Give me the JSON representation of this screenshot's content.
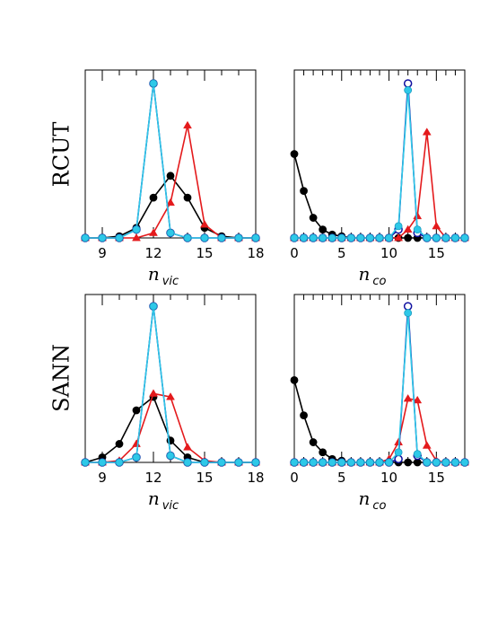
{
  "colors": {
    "black": "#000000",
    "red": "#e41a1c",
    "blue": "#1010a0",
    "cyan": "#2ec8e8"
  },
  "row_labels": [
    "RCUT",
    "SANN"
  ],
  "chart_data": [
    {
      "type": "line",
      "row": "RCUT",
      "xlabel": "n",
      "xlabel_sub": "vic",
      "xlim": [
        8,
        18
      ],
      "ylim": [
        0,
        1.0
      ],
      "xticks": [
        9,
        12,
        15,
        18
      ],
      "series": [
        {
          "color": "black",
          "marker": "circle",
          "x": [
            8,
            9,
            10,
            11,
            12,
            13,
            14,
            15,
            16,
            17,
            18
          ],
          "y": [
            0,
            0,
            0.01,
            0.06,
            0.24,
            0.37,
            0.24,
            0.06,
            0.01,
            0,
            0
          ]
        },
        {
          "color": "red",
          "marker": "triangle",
          "x": [
            8,
            9,
            10,
            11,
            12,
            13,
            14,
            15,
            16,
            17,
            18
          ],
          "y": [
            0,
            0,
            0,
            0,
            0.03,
            0.21,
            0.67,
            0.08,
            0,
            0,
            0
          ]
        },
        {
          "color": "blue",
          "marker": "open-circle",
          "x": [
            8,
            9,
            10,
            11,
            12,
            13,
            14,
            15,
            16,
            17,
            18
          ],
          "y": [
            0,
            0,
            0,
            0.05,
            0.92,
            0.03,
            0,
            0,
            0,
            0,
            0
          ]
        },
        {
          "color": "cyan",
          "marker": "circle",
          "x": [
            8,
            9,
            10,
            11,
            12,
            13,
            14,
            15,
            16,
            17,
            18
          ],
          "y": [
            0,
            0,
            0,
            0.05,
            0.92,
            0.03,
            0,
            0,
            0,
            0,
            0
          ]
        }
      ]
    },
    {
      "type": "line",
      "row": "RCUT",
      "xlabel": "n",
      "xlabel_sub": "co",
      "xlim": [
        0,
        18
      ],
      "ylim": [
        0,
        1.0
      ],
      "xticks": [
        0,
        5,
        10,
        15
      ],
      "series": [
        {
          "color": "black",
          "marker": "circle",
          "x": [
            0,
            1,
            2,
            3,
            4,
            5,
            6,
            7,
            8,
            9,
            10,
            11,
            12,
            13,
            14,
            15,
            16,
            17,
            18
          ],
          "y": [
            0.5,
            0.28,
            0.12,
            0.05,
            0.02,
            0.01,
            0,
            0,
            0,
            0,
            0,
            0,
            0,
            0,
            0,
            0,
            0,
            0,
            0
          ]
        },
        {
          "color": "red",
          "marker": "triangle",
          "x": [
            0,
            1,
            2,
            3,
            4,
            5,
            6,
            7,
            8,
            9,
            10,
            11,
            12,
            13,
            14,
            15,
            16,
            17,
            18
          ],
          "y": [
            0,
            0,
            0,
            0,
            0,
            0,
            0,
            0,
            0,
            0,
            0,
            0,
            0.05,
            0.13,
            0.63,
            0.07,
            0,
            0,
            0
          ]
        },
        {
          "color": "blue",
          "marker": "open-circle",
          "x": [
            0,
            1,
            2,
            3,
            4,
            5,
            6,
            7,
            8,
            9,
            10,
            11,
            12,
            13,
            14,
            15,
            16,
            17,
            18
          ],
          "y": [
            0,
            0,
            0,
            0,
            0,
            0,
            0,
            0,
            0,
            0,
            0,
            0.05,
            0.92,
            0.03,
            0,
            0,
            0,
            0,
            0
          ]
        },
        {
          "color": "cyan",
          "marker": "circle",
          "x": [
            0,
            1,
            2,
            3,
            4,
            5,
            6,
            7,
            8,
            9,
            10,
            11,
            12,
            13,
            14,
            15,
            16,
            17,
            18
          ],
          "y": [
            0,
            0,
            0,
            0,
            0,
            0,
            0,
            0,
            0,
            0,
            0,
            0.07,
            0.88,
            0.05,
            0,
            0,
            0,
            0,
            0
          ]
        }
      ]
    },
    {
      "type": "line",
      "row": "SANN",
      "xlabel": "n",
      "xlabel_sub": "vic",
      "xlim": [
        8,
        18
      ],
      "ylim": [
        0,
        1.0
      ],
      "xticks": [
        9,
        12,
        15,
        18
      ],
      "series": [
        {
          "color": "black",
          "marker": "circle",
          "x": [
            8,
            9,
            10,
            11,
            12,
            13,
            14,
            15,
            16,
            17,
            18
          ],
          "y": [
            0,
            0.03,
            0.11,
            0.31,
            0.39,
            0.13,
            0.03,
            0,
            0,
            0,
            0
          ]
        },
        {
          "color": "red",
          "marker": "triangle",
          "x": [
            8,
            9,
            10,
            11,
            12,
            13,
            14,
            15,
            16,
            17,
            18
          ],
          "y": [
            0,
            0,
            0.01,
            0.11,
            0.41,
            0.39,
            0.09,
            0.01,
            0,
            0,
            0
          ]
        },
        {
          "color": "blue",
          "marker": "open-circle",
          "x": [
            8,
            9,
            10,
            11,
            12,
            13,
            14,
            15,
            16,
            17,
            18
          ],
          "y": [
            0,
            0,
            0,
            0.03,
            0.93,
            0.04,
            0,
            0,
            0,
            0,
            0
          ]
        },
        {
          "color": "cyan",
          "marker": "circle",
          "x": [
            8,
            9,
            10,
            11,
            12,
            13,
            14,
            15,
            16,
            17,
            18
          ],
          "y": [
            0,
            0,
            0,
            0.03,
            0.93,
            0.04,
            0,
            0,
            0,
            0,
            0
          ]
        }
      ]
    },
    {
      "type": "line",
      "row": "SANN",
      "xlabel": "n",
      "xlabel_sub": "co",
      "xlim": [
        0,
        18
      ],
      "ylim": [
        0,
        1.0
      ],
      "xticks": [
        0,
        5,
        10,
        15
      ],
      "series": [
        {
          "color": "black",
          "marker": "circle",
          "x": [
            0,
            1,
            2,
            3,
            4,
            5,
            6,
            7,
            8,
            9,
            10,
            11,
            12,
            13,
            14,
            15,
            16,
            17,
            18
          ],
          "y": [
            0.49,
            0.28,
            0.12,
            0.06,
            0.02,
            0.01,
            0,
            0,
            0,
            0,
            0,
            0,
            0,
            0,
            0,
            0,
            0,
            0,
            0
          ]
        },
        {
          "color": "red",
          "marker": "triangle",
          "x": [
            0,
            1,
            2,
            3,
            4,
            5,
            6,
            7,
            8,
            9,
            10,
            11,
            12,
            13,
            14,
            15,
            16,
            17,
            18
          ],
          "y": [
            0,
            0,
            0,
            0,
            0,
            0,
            0,
            0,
            0,
            0,
            0.02,
            0.12,
            0.38,
            0.37,
            0.1,
            0.01,
            0,
            0,
            0
          ]
        },
        {
          "color": "blue",
          "marker": "open-circle",
          "x": [
            0,
            1,
            2,
            3,
            4,
            5,
            6,
            7,
            8,
            9,
            10,
            11,
            12,
            13,
            14,
            15,
            16,
            17,
            18
          ],
          "y": [
            0,
            0,
            0,
            0,
            0,
            0,
            0,
            0,
            0,
            0,
            0,
            0.02,
            0.93,
            0.04,
            0,
            0,
            0,
            0,
            0
          ]
        },
        {
          "color": "cyan",
          "marker": "circle",
          "x": [
            0,
            1,
            2,
            3,
            4,
            5,
            6,
            7,
            8,
            9,
            10,
            11,
            12,
            13,
            14,
            15,
            16,
            17,
            18
          ],
          "y": [
            0,
            0,
            0,
            0,
            0,
            0,
            0,
            0,
            0,
            0,
            0,
            0.06,
            0.89,
            0.05,
            0,
            0,
            0,
            0,
            0
          ]
        }
      ]
    }
  ]
}
